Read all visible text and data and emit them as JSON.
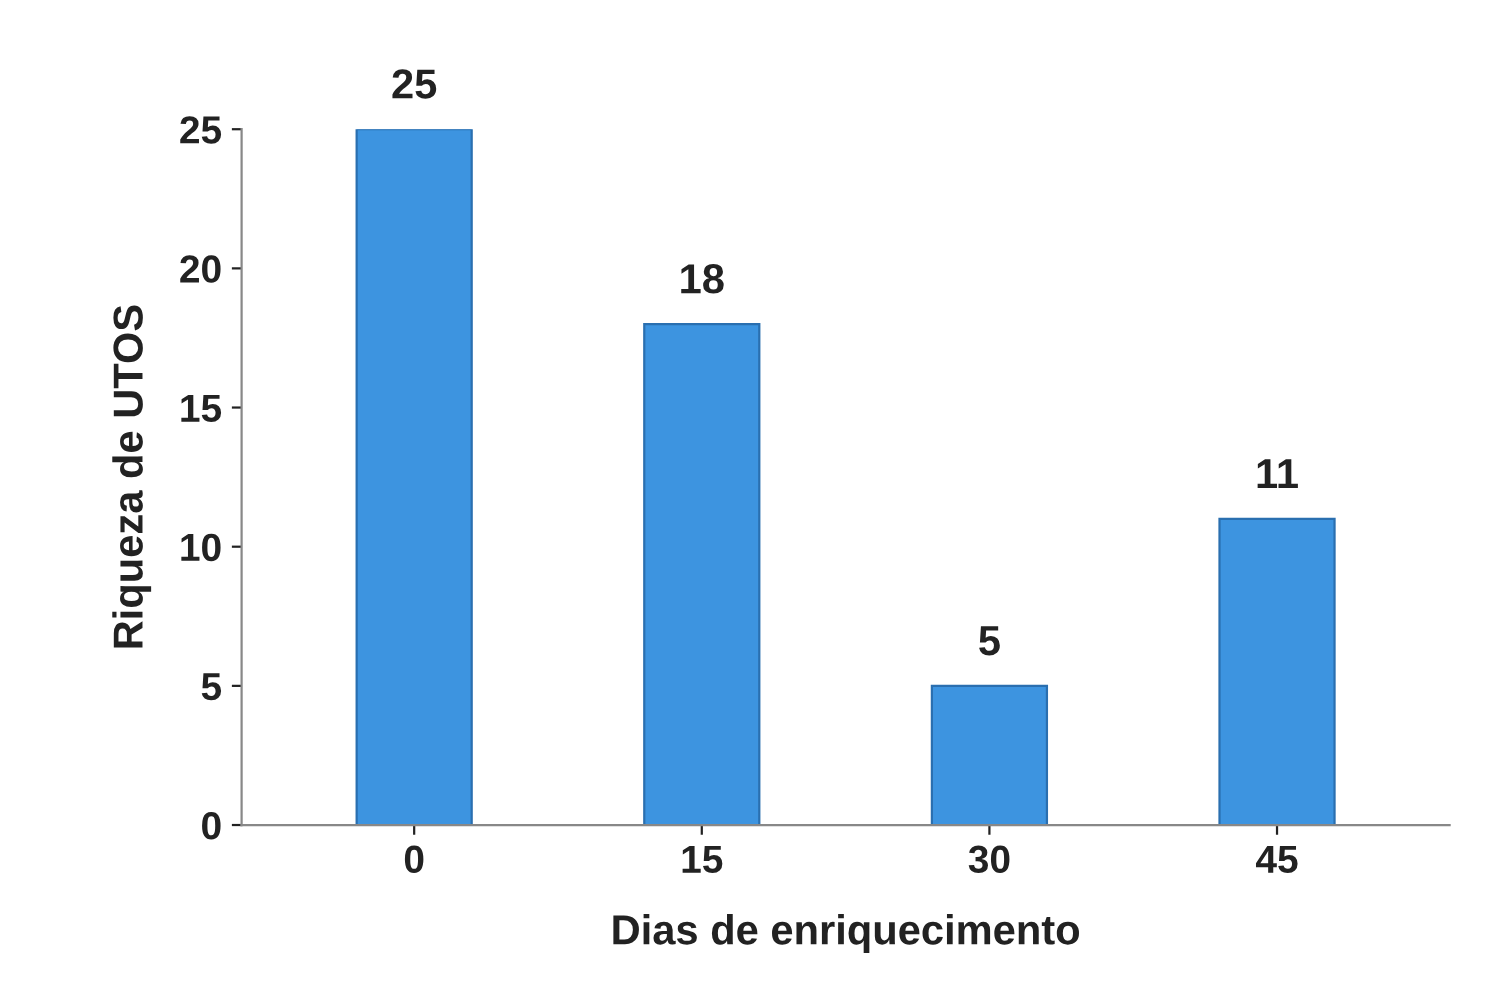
{
  "chart_data": {
    "type": "bar",
    "xlabel": "Dias de enriquecimento",
    "ylabel": "Riqueza de UTOS",
    "categories": [
      "0",
      "15",
      "30",
      "45"
    ],
    "values": [
      25,
      18,
      5,
      11
    ],
    "color": "#3d94e0",
    "ylim": [
      0,
      25
    ],
    "yticks": [
      0,
      5,
      10,
      15,
      20,
      25
    ],
    "data_labels": true,
    "grid": false
  }
}
